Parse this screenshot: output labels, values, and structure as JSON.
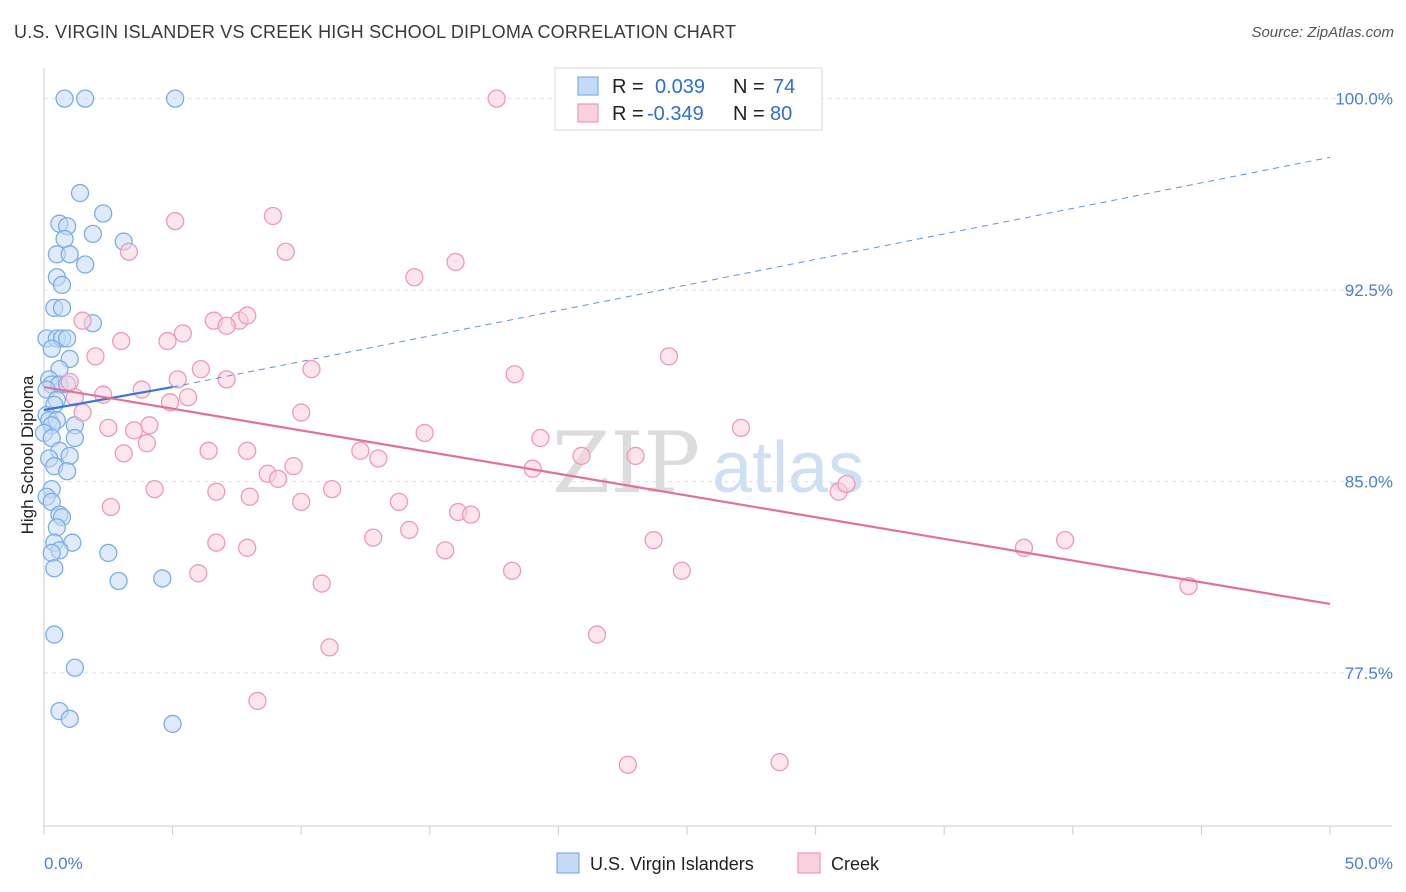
{
  "title": "U.S. VIRGIN ISLANDER VS CREEK HIGH SCHOOL DIPLOMA CORRELATION CHART",
  "source": "Source: ZipAtlas.com",
  "watermark": {
    "zip": "ZIP",
    "atlas": "atlas"
  },
  "chart_data": {
    "type": "scatter",
    "title": "U.S. VIRGIN ISLANDER VS CREEK HIGH SCHOOL DIPLOMA CORRELATION CHART",
    "xlabel": "",
    "ylabel": "High School Diploma",
    "xlim": [
      0,
      50
    ],
    "ylim": [
      71.5,
      101.2
    ],
    "x_tick_labels": {
      "left": "0.0%",
      "right": "50.0%"
    },
    "y_ticks": [
      100.0,
      92.5,
      85.0,
      77.5
    ],
    "y_tick_labels": [
      "100.0%",
      "92.5%",
      "85.0%",
      "77.5%"
    ],
    "grid": true,
    "legend_position": "top-center",
    "legend_box": [
      {
        "r_label": "R =",
        "r_value": "0.039",
        "n_label": "N =",
        "n_value": "74"
      },
      {
        "r_label": "R =",
        "r_value": "-0.349",
        "n_label": "N =",
        "n_value": "80"
      }
    ],
    "series": [
      {
        "name": "U.S. Virgin Islanders",
        "color": "#7aaee8",
        "fill": "#c5daf5",
        "trend": {
          "x0": 0.0,
          "y0": 87.8,
          "x1": 5.0,
          "y1": 88.7,
          "dash_x1": 50.0,
          "dash_y1": 97.7,
          "color": "#3a78d6"
        },
        "points": [
          [
            0.8,
            100.0
          ],
          [
            1.6,
            100.0
          ],
          [
            5.1,
            100.0
          ],
          [
            1.4,
            96.3
          ],
          [
            2.3,
            95.5
          ],
          [
            0.6,
            95.1
          ],
          [
            0.9,
            95.0
          ],
          [
            1.9,
            94.7
          ],
          [
            0.8,
            94.5
          ],
          [
            3.1,
            94.4
          ],
          [
            0.5,
            93.9
          ],
          [
            1.0,
            93.9
          ],
          [
            1.6,
            93.5
          ],
          [
            0.5,
            93.0
          ],
          [
            0.7,
            92.7
          ],
          [
            0.4,
            91.8
          ],
          [
            0.7,
            91.8
          ],
          [
            1.9,
            91.2
          ],
          [
            0.1,
            90.6
          ],
          [
            0.5,
            90.6
          ],
          [
            0.7,
            90.6
          ],
          [
            0.9,
            90.6
          ],
          [
            0.3,
            90.2
          ],
          [
            1.0,
            89.8
          ],
          [
            0.6,
            89.4
          ],
          [
            0.2,
            89.0
          ],
          [
            0.3,
            88.8
          ],
          [
            0.6,
            88.8
          ],
          [
            0.9,
            88.8
          ],
          [
            0.1,
            88.6
          ],
          [
            0.5,
            88.2
          ],
          [
            0.4,
            88.0
          ],
          [
            0.1,
            87.6
          ],
          [
            0.2,
            87.4
          ],
          [
            0.5,
            87.4
          ],
          [
            0.3,
            87.2
          ],
          [
            1.2,
            87.2
          ],
          [
            0.0,
            86.9
          ],
          [
            0.3,
            86.7
          ],
          [
            1.2,
            86.7
          ],
          [
            0.6,
            86.2
          ],
          [
            1.0,
            86.0
          ],
          [
            0.2,
            85.9
          ],
          [
            0.4,
            85.6
          ],
          [
            0.9,
            85.4
          ],
          [
            0.3,
            84.7
          ],
          [
            0.1,
            84.4
          ],
          [
            0.3,
            84.2
          ],
          [
            0.6,
            83.7
          ],
          [
            0.7,
            83.6
          ],
          [
            0.5,
            83.2
          ],
          [
            1.1,
            82.6
          ],
          [
            0.4,
            82.6
          ],
          [
            0.6,
            82.3
          ],
          [
            0.3,
            82.2
          ],
          [
            2.5,
            82.2
          ],
          [
            0.4,
            81.6
          ],
          [
            2.9,
            81.1
          ],
          [
            4.6,
            81.2
          ],
          [
            0.4,
            79.0
          ],
          [
            1.2,
            77.7
          ],
          [
            0.6,
            76.0
          ],
          [
            1.0,
            75.7
          ],
          [
            5.0,
            75.5
          ]
        ]
      },
      {
        "name": "Creek",
        "color": "#ee9ab5",
        "fill": "#f9d0dd",
        "trend": {
          "x0": 0.0,
          "y0": 88.7,
          "x1": 50.0,
          "y1": 80.2,
          "color": "#e0729a"
        },
        "points": [
          [
            17.6,
            100.0
          ],
          [
            8.9,
            95.4
          ],
          [
            5.1,
            95.2
          ],
          [
            3.3,
            94.0
          ],
          [
            9.4,
            94.0
          ],
          [
            16.0,
            93.6
          ],
          [
            14.4,
            93.0
          ],
          [
            1.5,
            91.3
          ],
          [
            6.6,
            91.3
          ],
          [
            7.6,
            91.3
          ],
          [
            7.1,
            91.1
          ],
          [
            7.9,
            91.5
          ],
          [
            5.4,
            90.8
          ],
          [
            3.0,
            90.5
          ],
          [
            4.8,
            90.5
          ],
          [
            2.0,
            89.9
          ],
          [
            24.3,
            89.9
          ],
          [
            6.1,
            89.4
          ],
          [
            10.4,
            89.4
          ],
          [
            18.3,
            89.2
          ],
          [
            5.2,
            89.0
          ],
          [
            7.1,
            89.0
          ],
          [
            1.0,
            88.9
          ],
          [
            3.8,
            88.6
          ],
          [
            2.3,
            88.4
          ],
          [
            5.6,
            88.3
          ],
          [
            4.9,
            88.1
          ],
          [
            1.2,
            88.3
          ],
          [
            1.5,
            87.7
          ],
          [
            10.0,
            87.7
          ],
          [
            4.1,
            87.2
          ],
          [
            2.5,
            87.1
          ],
          [
            3.5,
            87.0
          ],
          [
            27.1,
            87.1
          ],
          [
            14.8,
            86.9
          ],
          [
            19.3,
            86.7
          ],
          [
            4.0,
            86.5
          ],
          [
            7.9,
            86.2
          ],
          [
            12.3,
            86.2
          ],
          [
            3.1,
            86.1
          ],
          [
            6.4,
            86.2
          ],
          [
            20.9,
            86.0
          ],
          [
            23.0,
            86.0
          ],
          [
            13.0,
            85.9
          ],
          [
            9.7,
            85.6
          ],
          [
            19.0,
            85.5
          ],
          [
            8.7,
            85.3
          ],
          [
            9.1,
            85.1
          ],
          [
            4.3,
            84.7
          ],
          [
            6.7,
            84.6
          ],
          [
            11.2,
            84.7
          ],
          [
            30.9,
            84.6
          ],
          [
            31.2,
            84.9
          ],
          [
            8.0,
            84.4
          ],
          [
            10.0,
            84.2
          ],
          [
            13.8,
            84.2
          ],
          [
            2.6,
            84.0
          ],
          [
            16.1,
            83.8
          ],
          [
            16.6,
            83.7
          ],
          [
            14.2,
            83.1
          ],
          [
            12.8,
            82.8
          ],
          [
            23.7,
            82.7
          ],
          [
            6.7,
            82.6
          ],
          [
            7.9,
            82.4
          ],
          [
            15.6,
            82.3
          ],
          [
            38.1,
            82.4
          ],
          [
            39.7,
            82.7
          ],
          [
            6.0,
            81.4
          ],
          [
            18.2,
            81.5
          ],
          [
            24.8,
            81.5
          ],
          [
            10.8,
            81.0
          ],
          [
            44.5,
            80.9
          ],
          [
            21.5,
            79.0
          ],
          [
            11.1,
            78.5
          ],
          [
            8.3,
            76.4
          ],
          [
            22.7,
            73.9
          ],
          [
            28.6,
            74.0
          ]
        ]
      }
    ]
  }
}
